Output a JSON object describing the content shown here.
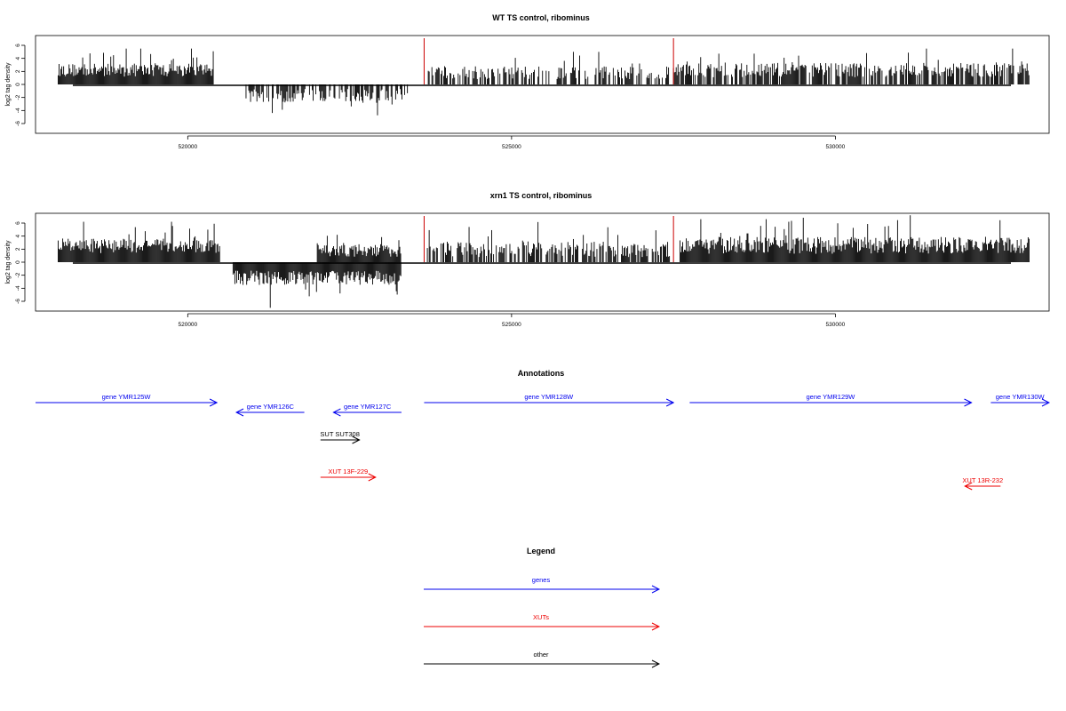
{
  "chart_data": [
    {
      "type": "bar",
      "title": "WT TS control, ribominus",
      "ylabel": "log2 tag density",
      "xlabel": "",
      "xlim": [
        517650,
        533300
      ],
      "ylim": [
        -7.5,
        7.5
      ],
      "yticks": [
        -6,
        -4,
        -2,
        0,
        2,
        4,
        6
      ],
      "xticks": [
        520000,
        525000,
        530000
      ],
      "xtick_labels": [
        "520000",
        "525000",
        "530000"
      ],
      "markers": [
        {
          "x": 523650,
          "color": "#cc0000"
        },
        {
          "x": 527500,
          "color": "#cc0000"
        }
      ],
      "regions": [
        {
          "start": 518000,
          "end": 520400,
          "strand": "+",
          "mean": 2.2,
          "spread": 1.0,
          "max": 5.5
        },
        {
          "start": 520900,
          "end": 523400,
          "strand": "-",
          "mean": 1.7,
          "spread": 1.0,
          "max": 4.8,
          "sparse": 0.6
        },
        {
          "start": 523700,
          "end": 527450,
          "strand": "+",
          "mean": 1.8,
          "spread": 1.0,
          "max": 5.0,
          "sparse": 0.55
        },
        {
          "start": 527500,
          "end": 533000,
          "strand": "+",
          "mean": 2.2,
          "spread": 1.1,
          "max": 5.5,
          "sparse": 0.75
        }
      ]
    },
    {
      "type": "bar",
      "title": "xrn1 TS control, ribominus",
      "ylabel": "log2 tag density",
      "xlabel": "",
      "xlim": [
        517650,
        533300
      ],
      "ylim": [
        -7.5,
        7.5
      ],
      "yticks": [
        -6,
        -4,
        -2,
        0,
        2,
        4,
        6
      ],
      "xticks": [
        520000,
        525000,
        530000
      ],
      "xtick_labels": [
        "520000",
        "525000",
        "530000"
      ],
      "markers": [
        {
          "x": 523650,
          "color": "#cc0000"
        },
        {
          "x": 527500,
          "color": "#cc0000"
        }
      ],
      "regions": [
        {
          "start": 518000,
          "end": 520500,
          "strand": "+",
          "mean": 2.5,
          "spread": 1.1,
          "max": 6.2
        },
        {
          "start": 520700,
          "end": 523300,
          "strand": "-",
          "mean": 2.4,
          "spread": 1.1,
          "max": 7.0
        },
        {
          "start": 522000,
          "end": 523300,
          "strand": "+",
          "mean": 1.8,
          "spread": 1.0,
          "max": 4.2
        },
        {
          "start": 523700,
          "end": 527450,
          "strand": "+",
          "mean": 2.0,
          "spread": 1.2,
          "max": 6.2,
          "sparse": 0.7
        },
        {
          "start": 527600,
          "end": 533000,
          "strand": "+",
          "mean": 2.6,
          "spread": 1.3,
          "max": 7.2
        }
      ]
    }
  ],
  "annotations": {
    "title": "Annotations",
    "features": [
      {
        "label": "gene YMR125W",
        "start": 517650,
        "end": 520450,
        "strand": "+",
        "color": "#0000ee",
        "row": 0
      },
      {
        "label": "gene YMR126C",
        "start": 520750,
        "end": 521800,
        "strand": "-",
        "color": "#0000ee",
        "row": 1
      },
      {
        "label": "gene YMR127C",
        "start": 522250,
        "end": 523300,
        "strand": "-",
        "color": "#0000ee",
        "row": 1
      },
      {
        "label": "gene YMR128W",
        "start": 523650,
        "end": 527500,
        "strand": "+",
        "color": "#0000ee",
        "row": 0
      },
      {
        "label": "gene YMR129W",
        "start": 527750,
        "end": 532100,
        "strand": "+",
        "color": "#0000ee",
        "row": 0
      },
      {
        "label": "gene YMR130W",
        "start": 532400,
        "end": 533300,
        "strand": "+",
        "color": "#0000ee",
        "row": 0
      },
      {
        "label": "SUT SUT308",
        "start": 522050,
        "end": 522650,
        "strand": "+",
        "color": "#000000",
        "row": 2
      },
      {
        "label": "XUT 13F-229",
        "start": 522050,
        "end": 522900,
        "strand": "+",
        "color": "#ee0000",
        "row": 3
      },
      {
        "label": "XUT 13R-232",
        "start": 532000,
        "end": 532550,
        "strand": "-",
        "color": "#ee0000",
        "row": 4
      }
    ]
  },
  "legend": {
    "title": "Legend",
    "items": [
      {
        "label": "genes",
        "color": "#0000ee"
      },
      {
        "label": "XUTs",
        "color": "#ee0000"
      },
      {
        "label": "other",
        "color": "#000000"
      }
    ]
  }
}
